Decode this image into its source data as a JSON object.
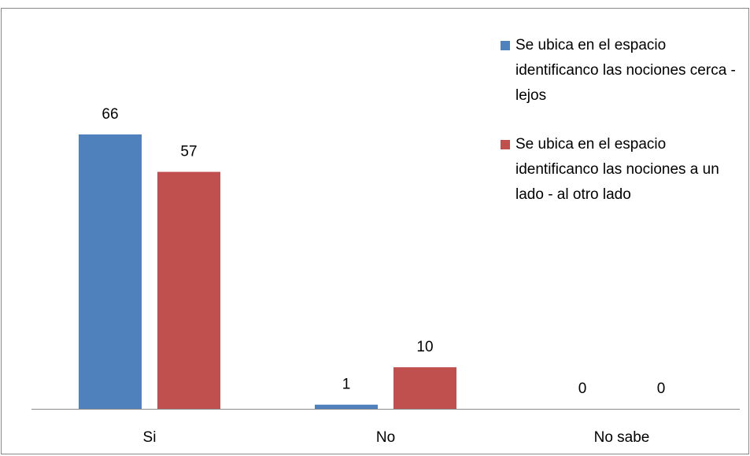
{
  "chart_data": {
    "type": "bar",
    "categories": [
      "Si",
      "No",
      "No sabe"
    ],
    "series": [
      {
        "name": "Se ubica en el espacio identificanco las nociones cerca - lejos",
        "color": "#4f81bd",
        "values": [
          66,
          1,
          0
        ]
      },
      {
        "name": "Se ubica en el espacio identificanco las nociones a un lado - al otro lado",
        "color": "#c0504d",
        "values": [
          57,
          10,
          0
        ]
      }
    ],
    "legend": "right"
  }
}
